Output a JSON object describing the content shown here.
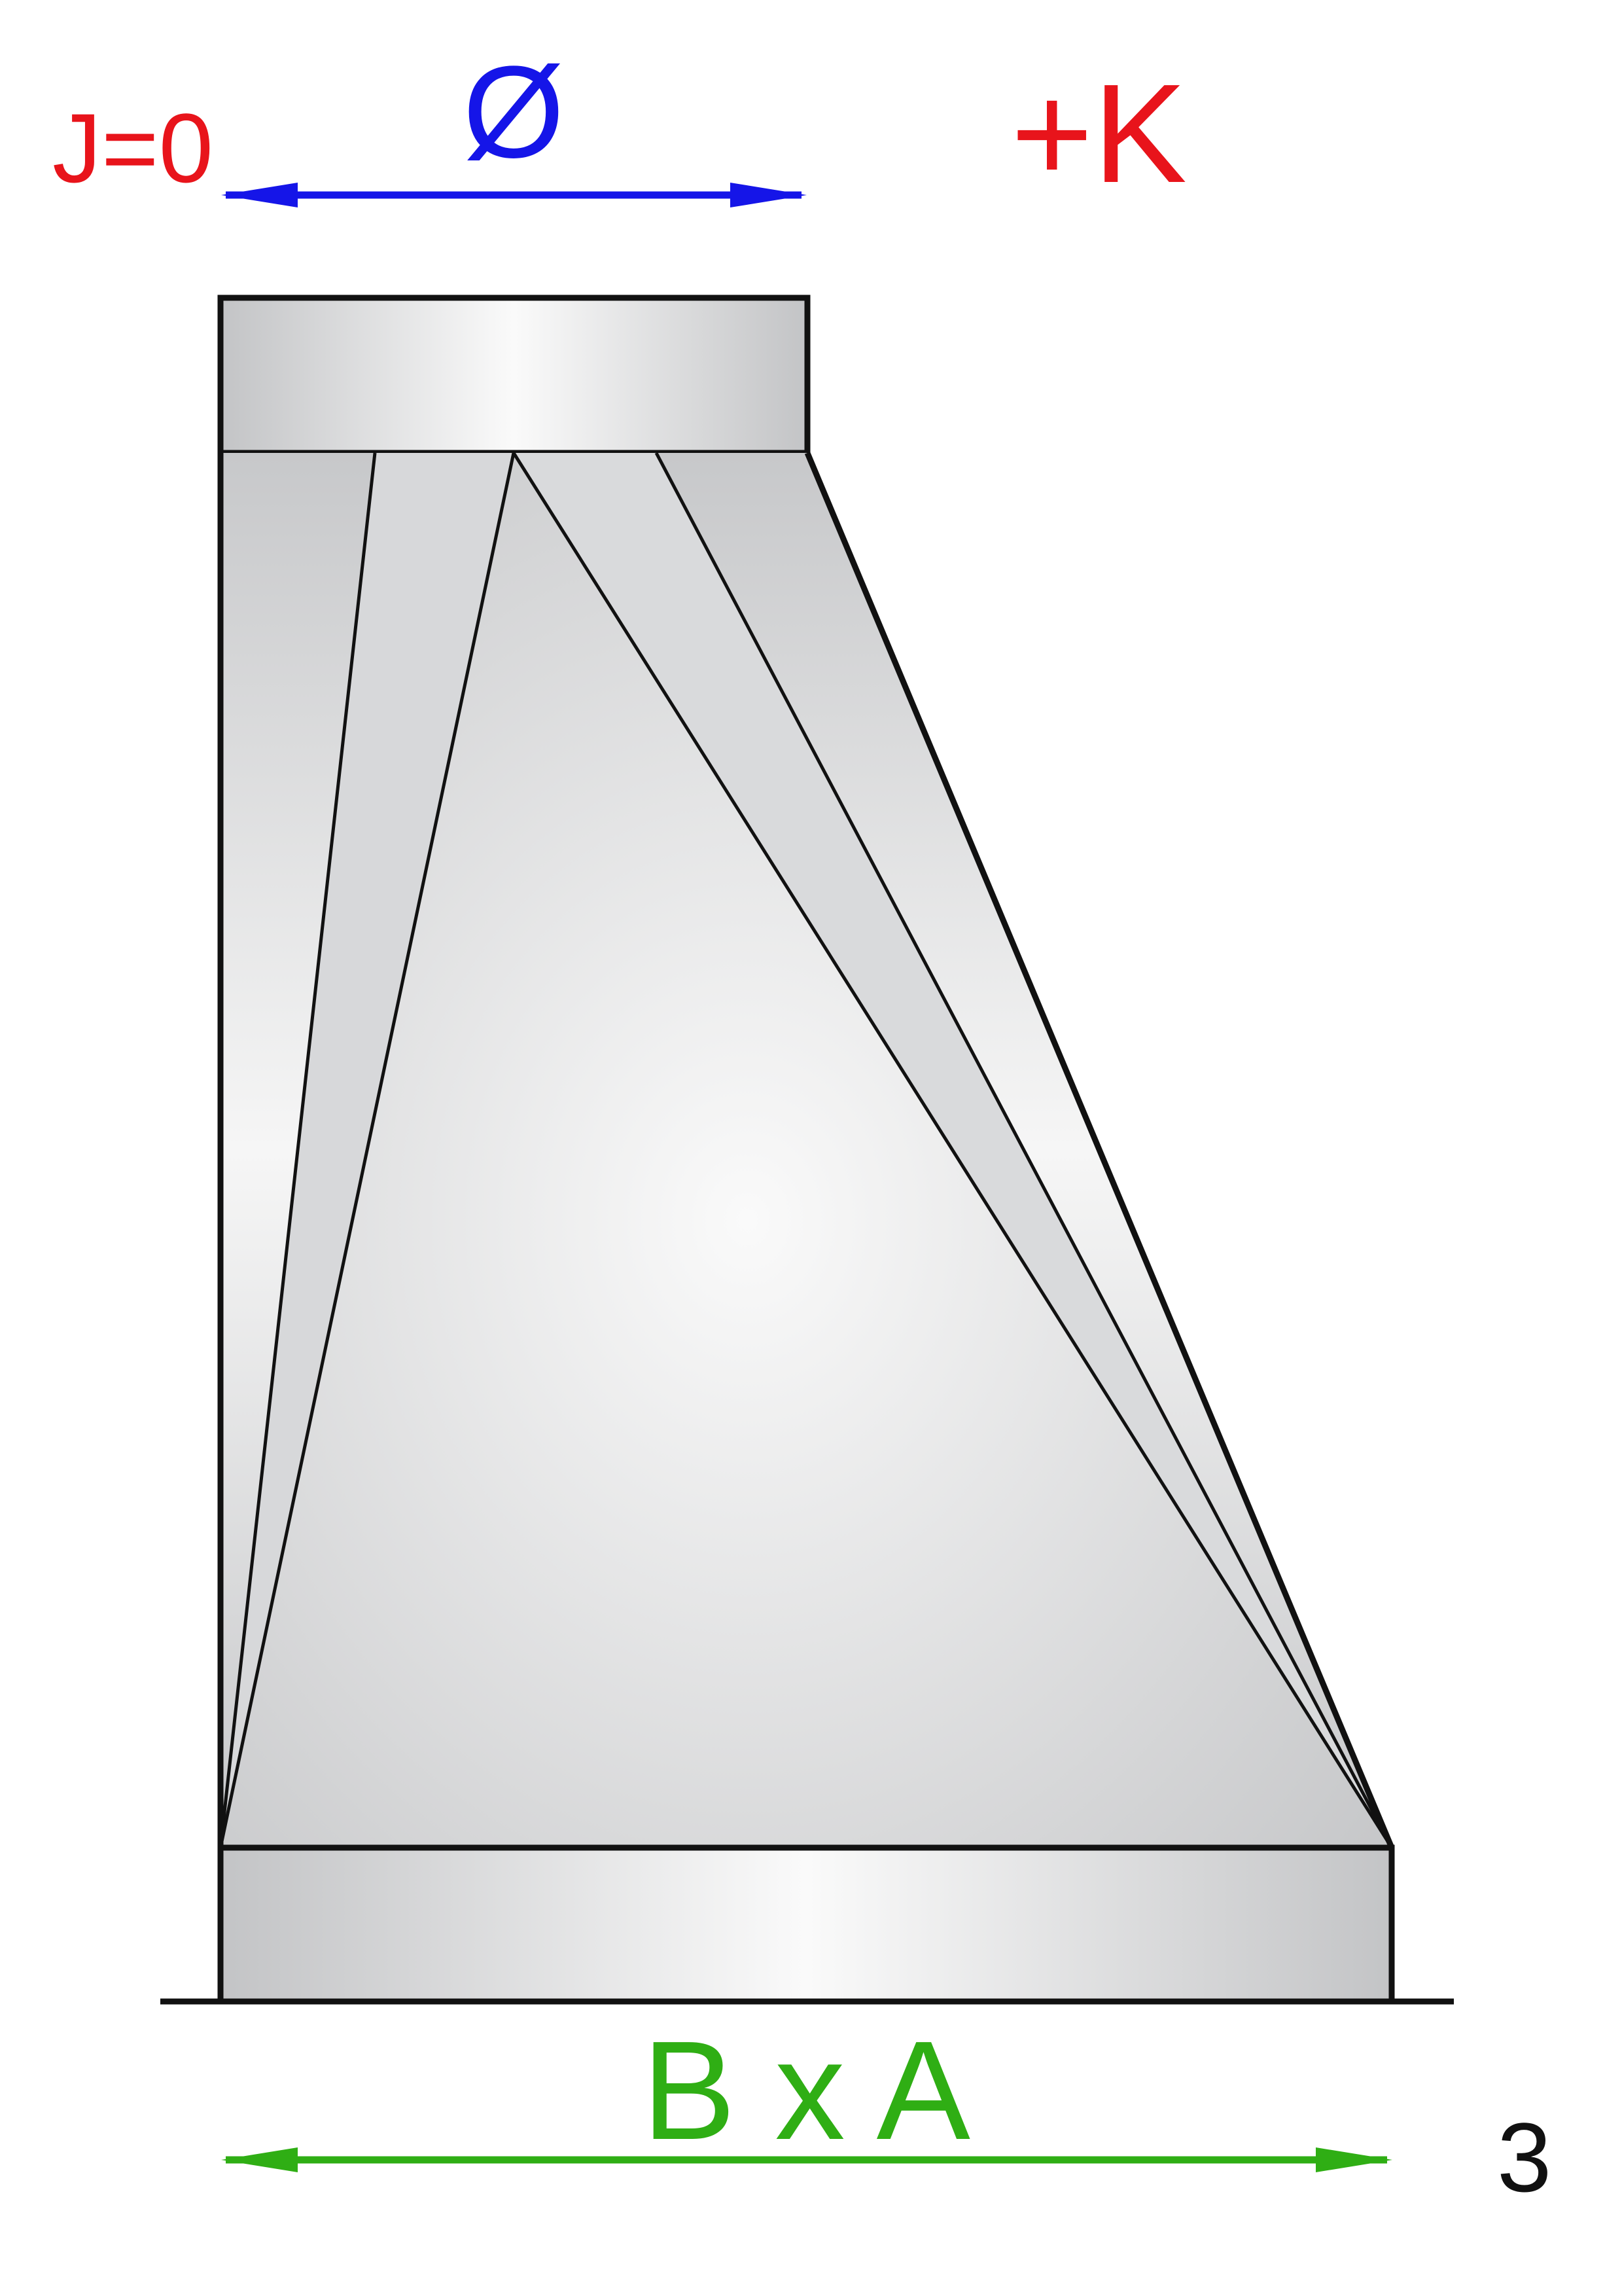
{
  "labels": {
    "j_value": "J=0",
    "diameter": "Ø",
    "offset": "+K",
    "base_size": "B x A",
    "sheet_number": "3"
  },
  "colors": {
    "j_value": "#e8141b",
    "diameter": "#1515e8",
    "offset": "#e8141b",
    "base_size": "#2fae14",
    "sheet_number": "#111111",
    "outline": "#111111",
    "fill_light": "#fafafa",
    "fill_dark": "#c3c4c6"
  }
}
